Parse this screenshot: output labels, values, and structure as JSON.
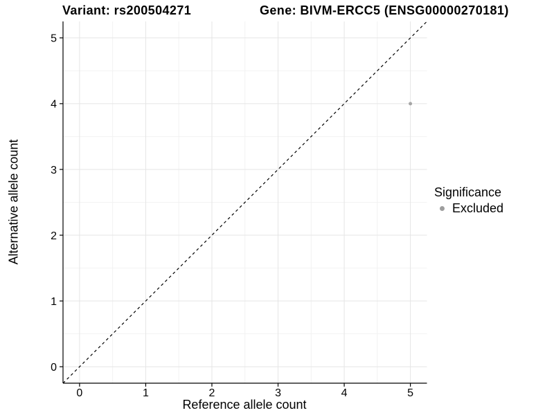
{
  "chart_data": {
    "type": "scatter",
    "titles": {
      "left": "Variant: rs200504271",
      "right": "Gene: BIVM-ERCC5 (ENSG00000270181)"
    },
    "xlabel": "Reference allele count",
    "ylabel": "Alternative allele count",
    "xlim": [
      -0.25,
      5.25
    ],
    "ylim": [
      -0.25,
      5.25
    ],
    "xticks": [
      0,
      1,
      2,
      3,
      4,
      5
    ],
    "yticks": [
      0,
      1,
      2,
      3,
      4,
      5
    ],
    "x_minor": [
      0.5,
      1.5,
      2.5,
      3.5,
      4.5
    ],
    "y_minor": [
      0.5,
      1.5,
      2.5,
      3.5,
      4.5
    ],
    "grid": "major and minor, light gray on white panel",
    "legend_position": "right",
    "series": [
      {
        "name": "Excluded",
        "color": "#a6a6a6",
        "marker_radius": 2.5,
        "points": [
          {
            "x": 5,
            "y": 4
          }
        ]
      }
    ],
    "reference_line": {
      "slope": 1,
      "intercept": 0,
      "style": "dashed",
      "color": "#000000"
    },
    "legend": {
      "title": "Significance",
      "entries": [
        {
          "label": "Excluded",
          "color": "#9e9e9e"
        }
      ]
    }
  },
  "colors": {
    "background": "#ffffff",
    "grid_major": "#e5e5e5",
    "grid_minor": "#f2f2f2",
    "axis": "#000000",
    "text": "#000000"
  }
}
